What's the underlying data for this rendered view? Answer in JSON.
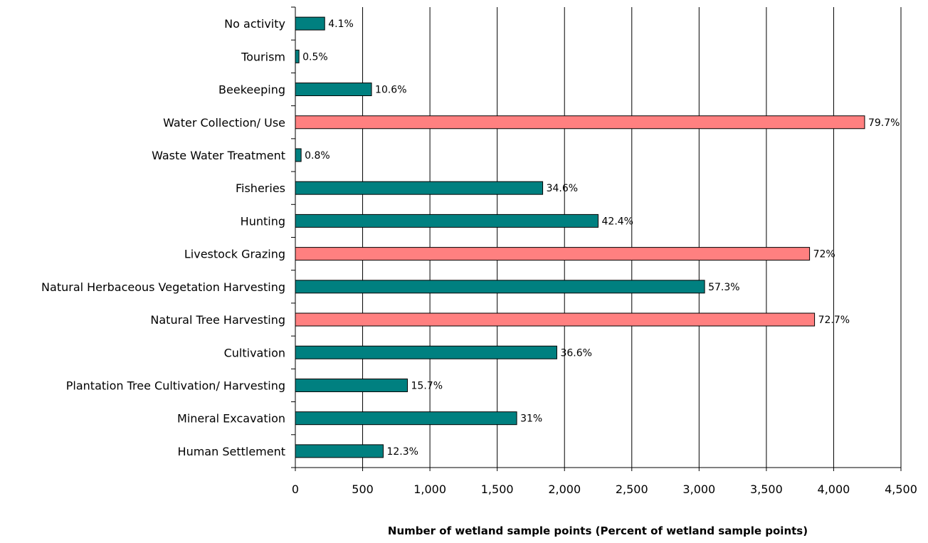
{
  "chart_data": {
    "type": "bar",
    "orientation": "horizontal",
    "title": "",
    "xlabel": "Number of wetland sample points (Percent of wetland sample points)",
    "ylabel": "",
    "xlim": [
      0,
      4500
    ],
    "x_ticks": [
      0,
      500,
      1000,
      1500,
      2000,
      2500,
      3000,
      3500,
      4000,
      4500
    ],
    "x_tick_labels": [
      "0",
      "500",
      "1,000",
      "1,500",
      "2,000",
      "2,500",
      "3,000",
      "3,500",
      "4,000",
      "4,500"
    ],
    "grid": "vertical",
    "legend": "none",
    "colors": {
      "default": "#008080",
      "highlight": "#ff8080"
    },
    "categories": [
      "No activity",
      "Tourism",
      "Beekeeping",
      "Water Collection/ Use",
      "Waste Water Treatment",
      "Fisheries",
      "Hunting",
      "Livestock Grazing",
      "Natural Herbaceous Vegetation Harvesting",
      "Natural Tree Harvesting",
      "Cultivation",
      "Plantation Tree Cultivation/ Harvesting",
      "Mineral Excavation",
      "Human Settlement"
    ],
    "values": [
      218,
      27,
      566,
      4230,
      43,
      1838,
      2250,
      3821,
      3041,
      3858,
      1943,
      833,
      1645,
      653
    ],
    "data_labels": [
      "4.1%",
      "0.5%",
      "10.6%",
      "79.7%",
      "0.8%",
      "34.6%",
      "42.4%",
      "72%",
      "57.3%",
      "72.7%",
      "36.6%",
      "15.7%",
      "31%",
      "12.3%"
    ],
    "highlighted": [
      false,
      false,
      false,
      true,
      false,
      false,
      false,
      true,
      false,
      true,
      false,
      false,
      false,
      false
    ]
  }
}
